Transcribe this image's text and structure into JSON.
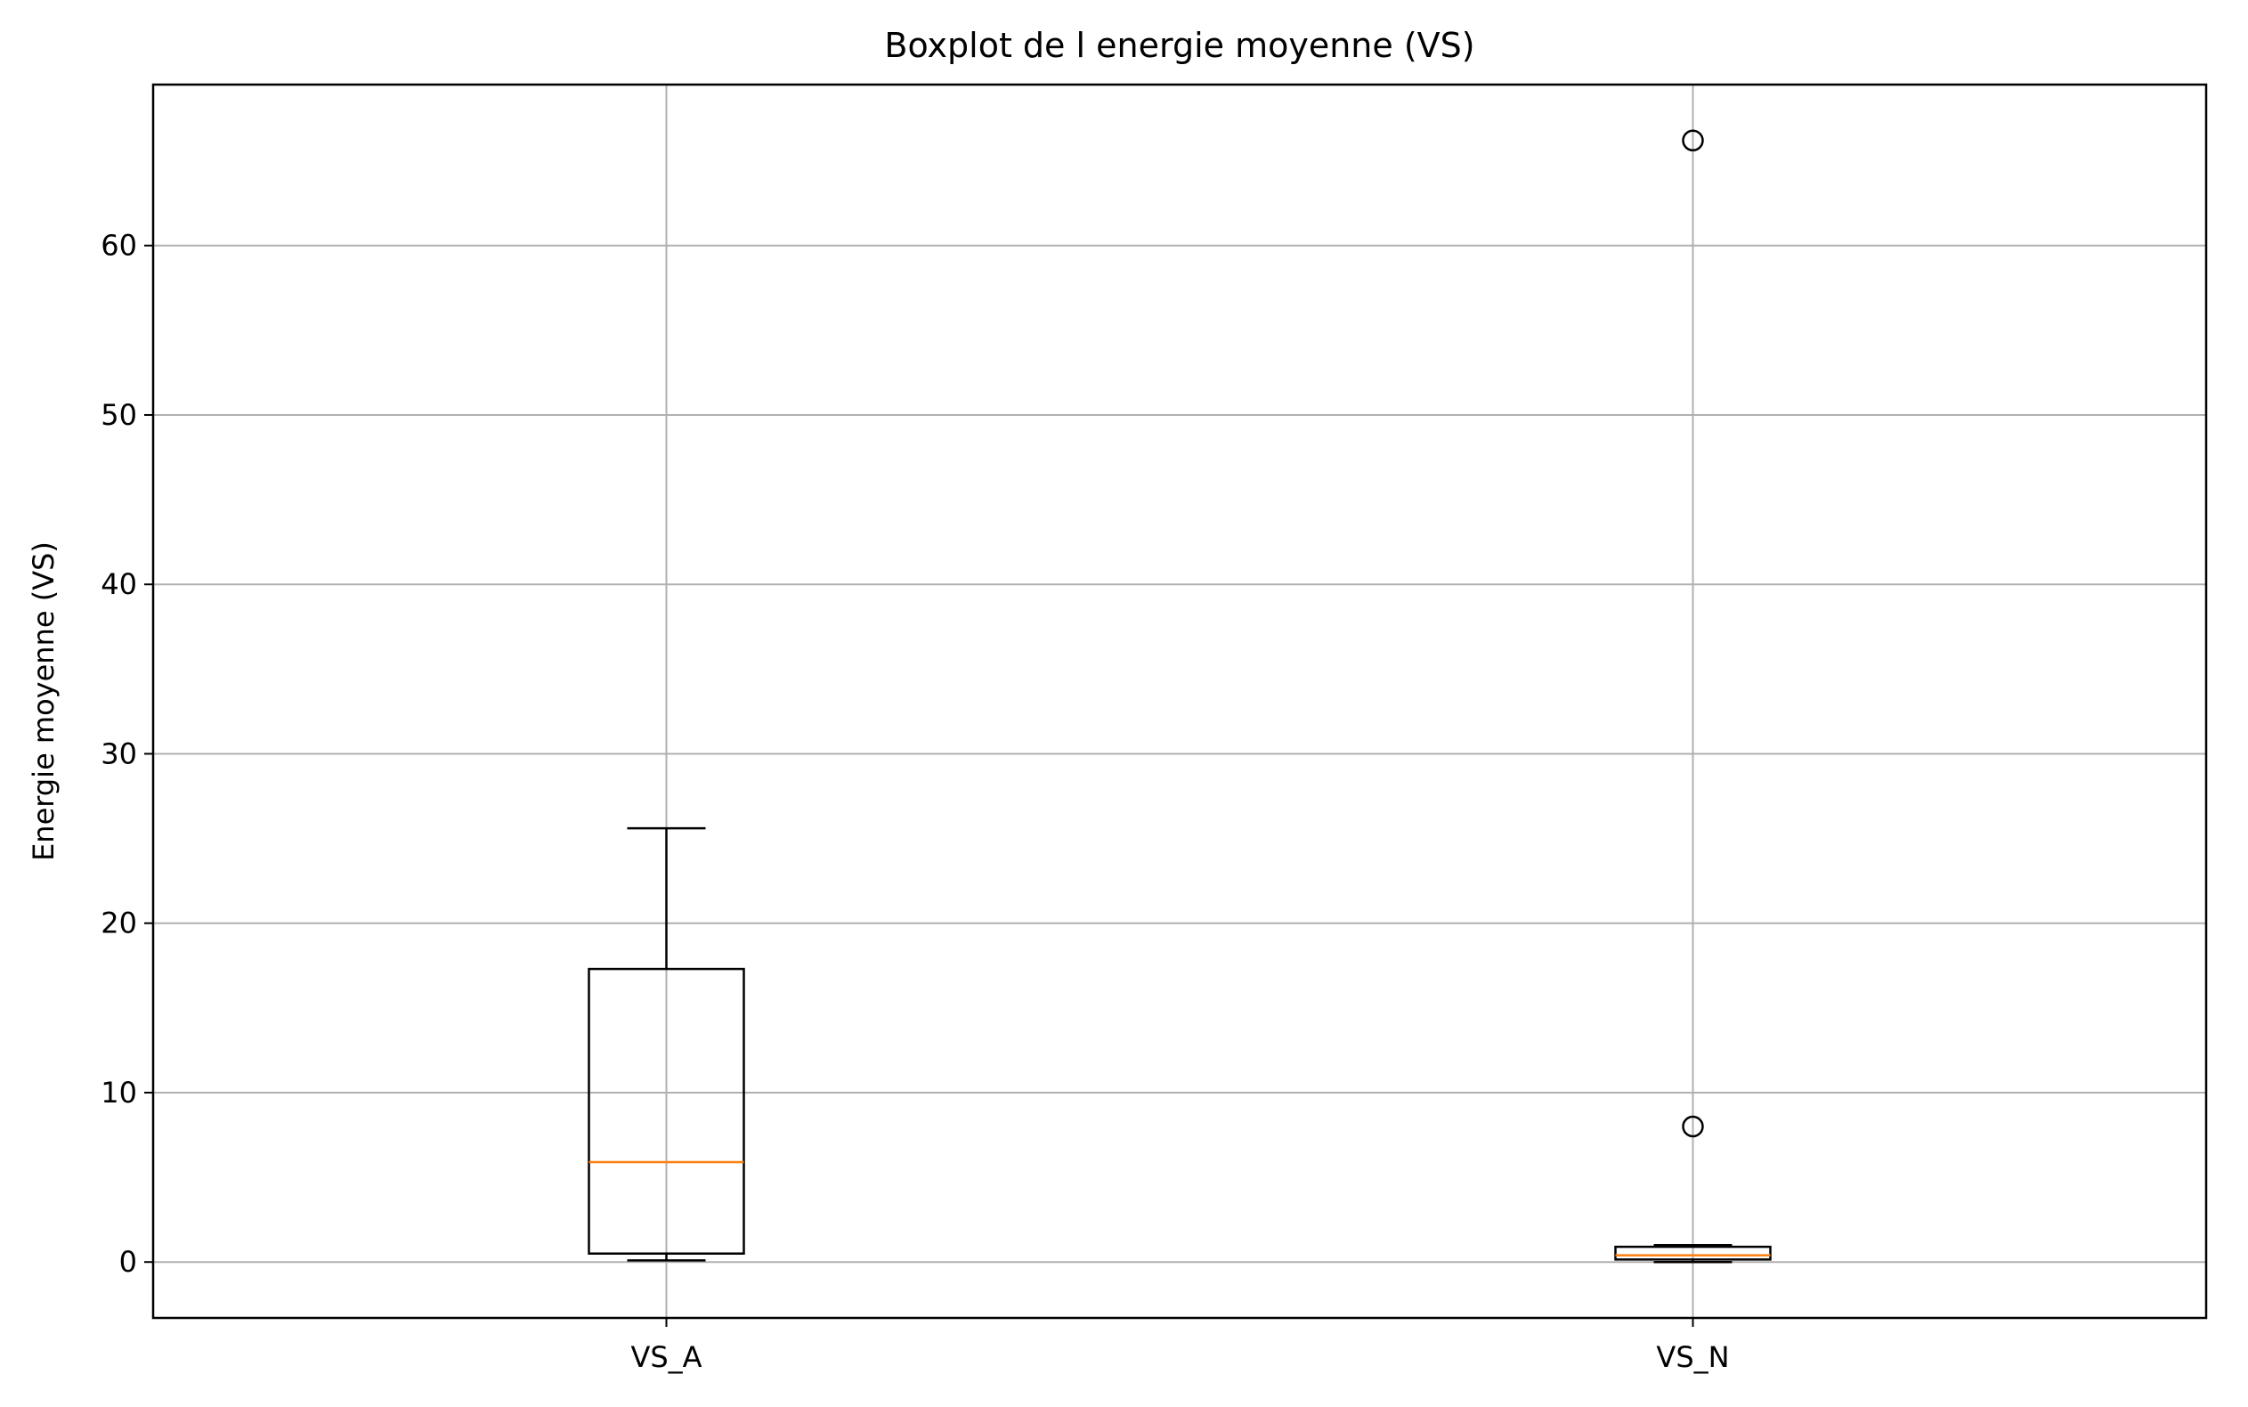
{
  "chart_data": {
    "type": "boxplot",
    "title": "Boxplot de l energie moyenne (VS)",
    "xlabel": "",
    "ylabel": "Energie moyenne (VS)",
    "ylim": [
      -3.3,
      69.5
    ],
    "yticks": [
      0,
      10,
      20,
      30,
      40,
      50,
      60
    ],
    "grid": true,
    "categories": [
      "VS_A",
      "VS_N"
    ],
    "boxes": [
      {
        "category": "VS_A",
        "whisker_low": 0.1,
        "q1": 0.5,
        "median": 5.9,
        "q3": 17.3,
        "whisker_high": 25.6,
        "outliers": []
      },
      {
        "category": "VS_N",
        "whisker_low": 0.0,
        "q1": 0.15,
        "median": 0.4,
        "q3": 0.9,
        "whisker_high": 1.0,
        "outliers": [
          8.0,
          66.2
        ]
      }
    ],
    "colors": {
      "box": "#000000",
      "median": "#ff7f0e",
      "grid": "#b0b0b0"
    }
  }
}
